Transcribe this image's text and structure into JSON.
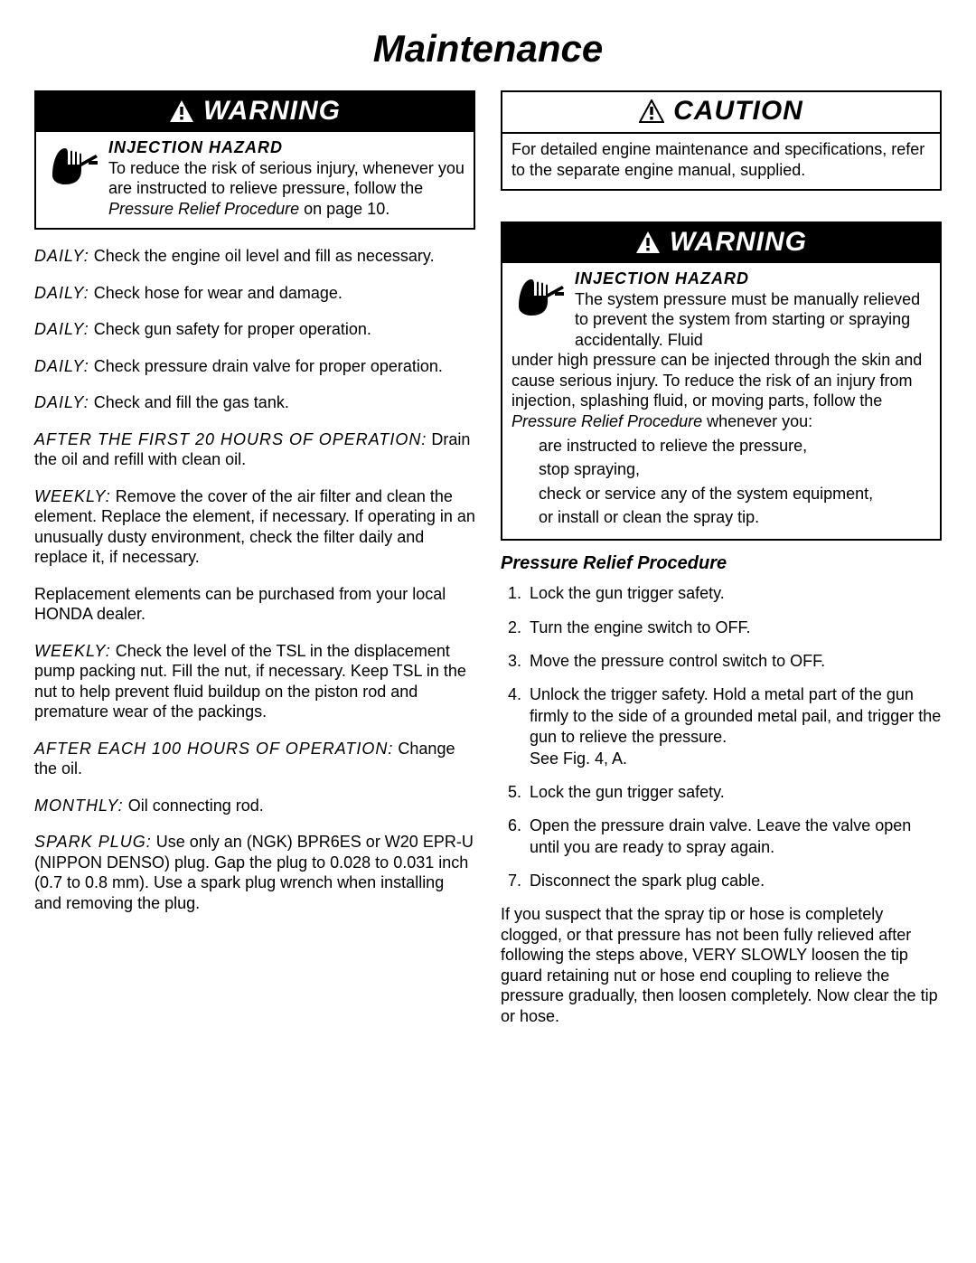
{
  "page_title": "Maintenance",
  "colors": {
    "black": "#000000",
    "white": "#ffffff"
  },
  "left": {
    "warning": {
      "title": "WARNING",
      "hazard_label": "INJECTION HAZARD",
      "body_before_em": "To reduce the risk of serious injury, whenever you are instructed to relieve pressure, follow the ",
      "body_em": "Pressure Relief Procedure",
      "body_after_em": " on page 10."
    },
    "items": [
      {
        "label": "DAILY:",
        "text": " Check the engine oil level and fill as necessary."
      },
      {
        "label": "DAILY:",
        "text": " Check hose for wear and damage."
      },
      {
        "label": "DAILY:",
        "text": " Check gun safety for proper operation."
      },
      {
        "label": "DAILY:",
        "text": " Check pressure drain valve for proper operation."
      },
      {
        "label": "DAILY:",
        "text": " Check and fill the gas tank."
      },
      {
        "label": "AFTER THE FIRST 20 HOURS OF OPERATION:",
        "text": " Drain the oil and refill with clean oil."
      },
      {
        "label": "WEEKLY:",
        "text": " Remove the cover of the air filter and clean the element. Replace the element, if necessary. If operating in an unusually dusty environment, check the filter daily and replace it, if necessary."
      },
      {
        "label": "",
        "text": "Replacement elements can be purchased from your local HONDA dealer."
      },
      {
        "label": "WEEKLY:",
        "text": " Check the level of the TSL in the displacement pump packing nut. Fill the nut, if necessary. Keep TSL in the nut to help prevent fluid buildup on the piston rod and premature wear of the packings."
      },
      {
        "label": "AFTER EACH 100 HOURS OF OPERATION:",
        "text": " Change the oil."
      },
      {
        "label": "MONTHLY:",
        "text": " Oil connecting rod."
      },
      {
        "label": "SPARK PLUG:",
        "text": " Use only an (NGK) BPR6ES or W20 EPR-U (NIPPON DENSO) plug. Gap the plug to 0.028 to 0.031 inch (0.7 to 0.8 mm). Use a spark plug wrench when installing and removing the plug."
      }
    ]
  },
  "right": {
    "caution": {
      "title": "CAUTION",
      "body": "For detailed engine maintenance and specifications, refer to the separate engine manual, supplied."
    },
    "warning": {
      "title": "WARNING",
      "hazard_label": "INJECTION HAZARD",
      "body_lead": "The system pressure must be manually relieved to prevent the system from starting or spraying accidentally. Fluid ",
      "body_rest_before_em": "under high pressure can be injected through the skin and cause serious injury. To reduce the risk of an injury from injection, splashing fluid, or moving parts, follow the ",
      "body_em": "Pressure Relief Procedure",
      "body_rest_after_em": " whenever you:",
      "bullets": [
        "are instructed to relieve the pressure,",
        "stop spraying,",
        "check or service any of the system equipment,",
        "or install or clean the spray tip."
      ]
    },
    "procedure": {
      "heading": "Pressure Relief Procedure",
      "steps": [
        "Lock the gun trigger safety.",
        "Turn the engine switch to OFF.",
        "Move the pressure control switch to OFF.",
        "Unlock the trigger safety. Hold a metal part of the gun firmly to the side of a grounded metal pail, and trigger the gun to relieve the pressure.\nSee Fig. 4, A.",
        "Lock the gun trigger safety.",
        "Open the pressure drain valve. Leave the valve open until you are ready to spray again.",
        "Disconnect the spark plug cable."
      ],
      "tail": "If you suspect that the spray tip or hose is completely clogged, or that pressure has not been fully relieved after following the steps above, VERY SLOWLY loosen the tip guard retaining nut or hose end coupling to relieve the pressure gradually, then loosen completely. Now clear the tip or hose."
    }
  }
}
